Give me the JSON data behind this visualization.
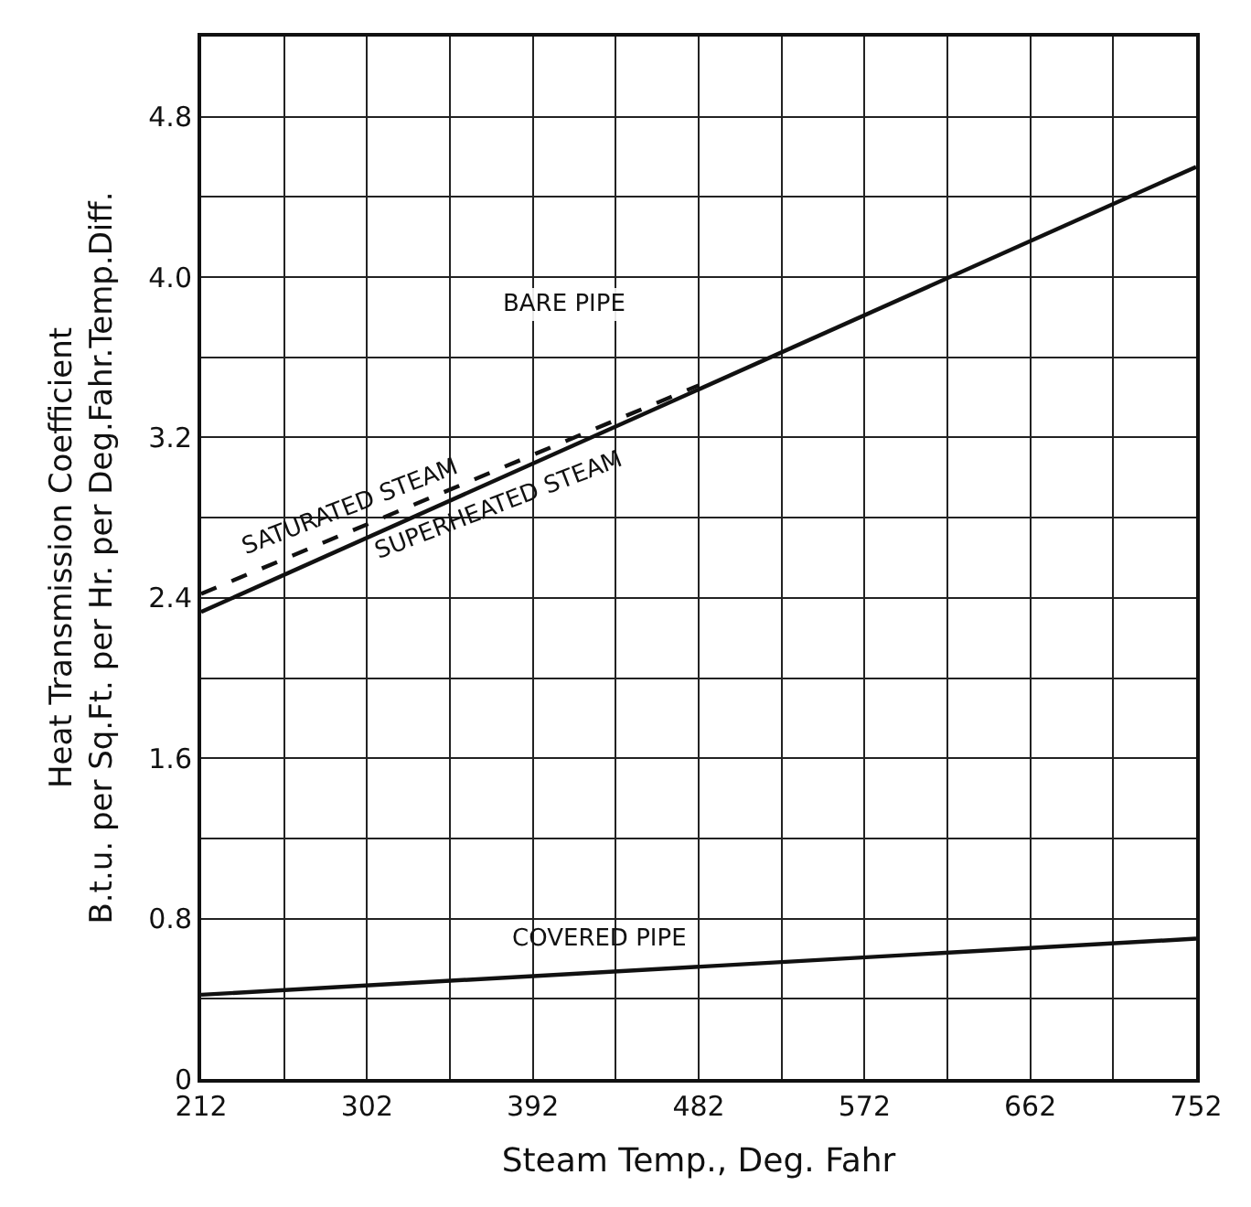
{
  "chart_data": {
    "type": "line",
    "xlabel": "Steam Temp., Deg. Fahr",
    "ylabel": "Heat Transmission Coefficient\nB.t.u. per Sq.Ft. per Hr. per Deg.Fahr.Temp.Diff.",
    "x": [
      212,
      752
    ],
    "series": [
      {
        "name": "SUPERHEATED STEAM",
        "color": "#111111",
        "values": [
          2.33,
          4.55
        ],
        "line_style": "solid"
      },
      {
        "name": "SATURATED STEAM",
        "color": "#111111",
        "x": [
          212,
          482
        ],
        "values": [
          2.42,
          3.46
        ],
        "line_style": "dashed"
      },
      {
        "name": "COVERED PIPE",
        "color": "#111111",
        "values": [
          0.42,
          0.7
        ],
        "line_style": "solid"
      }
    ],
    "annotations": [
      "BARE PIPE"
    ],
    "xlim": [
      212,
      752
    ],
    "ylim": [
      0,
      5.2
    ],
    "xticks": [
      212,
      {
        "value": 257,
        "label": null
      },
      302,
      {
        "value": 347,
        "label": null
      },
      392,
      {
        "value": 437,
        "label": null
      },
      482,
      {
        "value": 527,
        "label": null
      },
      572,
      {
        "value": 617,
        "label": null
      },
      662,
      {
        "value": 707,
        "label": null
      },
      752
    ],
    "yticks": [
      0,
      {
        "value": 0.4,
        "label": null
      },
      0.8,
      {
        "value": 1.2,
        "label": null
      },
      1.6,
      {
        "value": 2.0,
        "label": null
      },
      2.4,
      {
        "value": 2.8,
        "label": null
      },
      3.2,
      {
        "value": 3.6,
        "label": null
      },
      {
        "value": 4.0,
        "label": "4.0"
      },
      {
        "value": 4.4,
        "label": null
      },
      4.8
    ],
    "grid": true,
    "marker": "none"
  }
}
